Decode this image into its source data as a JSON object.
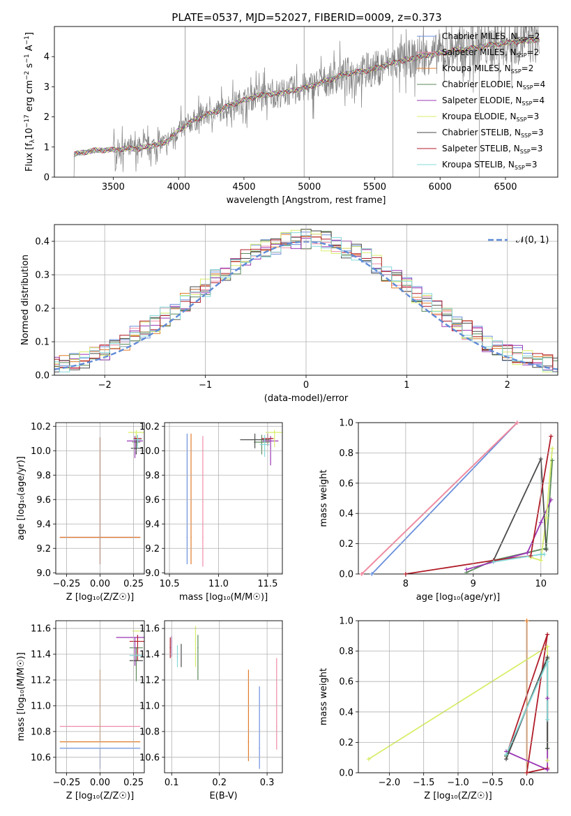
{
  "figure_title": "PLATE=0537, MJD=52027, FIBERID=0009, z=0.373",
  "colors": {
    "Chabrier MILES": "#6a8fdc",
    "Salpeter MILES": "#f08aa8",
    "Kroupa MILES": "#e07b2a",
    "Chabrier ELODIE": "#5a8a5a",
    "Salpeter ELODIE": "#9a35b5",
    "Kroupa ELODIE": "#d8ee6a",
    "Chabrier STELIB": "#4a4a4a",
    "Salpeter STELIB": "#b01c28",
    "Kroupa STELIB": "#84d8d8",
    "observed": "#808080",
    "normal": "#5f8bd6"
  },
  "chart_data": [
    {
      "id": "spectrum",
      "type": "line",
      "title": "PLATE=0537, MJD=52027, FIBERID=0009, z=0.373",
      "xlabel": "wavelength [Angstrom, rest frame]",
      "ylabel": "Flux [f_λ 10^-17 erg cm^-2 s^-1 A^-1]",
      "xlim": [
        3050,
        6900
      ],
      "ylim": [
        0,
        5
      ],
      "xticks": [
        "3500",
        "4000",
        "4500",
        "5000",
        "5500",
        "6000",
        "6500"
      ],
      "yticks": [
        "0",
        "1",
        "2",
        "3",
        "4"
      ],
      "legend_position": "top-right",
      "legend": [
        {
          "label": "Chabrier MILES, N",
          "sub": "SSP",
          "tail": "=2",
          "color": "#6a8fdc"
        },
        {
          "label": "Salpeter MILES, N",
          "sub": "SSP",
          "tail": "=2",
          "color": "#f08aa8"
        },
        {
          "label": "Kroupa MILES, N",
          "sub": "SSP",
          "tail": "=2",
          "color": "#e07b2a"
        },
        {
          "label": "Chabrier ELODIE, N",
          "sub": "SSP",
          "tail": "=4",
          "color": "#5a8a5a"
        },
        {
          "label": "Salpeter ELODIE, N",
          "sub": "SSP",
          "tail": "=4",
          "color": "#9a35b5"
        },
        {
          "label": "Kroupa ELODIE, N",
          "sub": "SSP",
          "tail": "=3",
          "color": "#d8ee6a"
        },
        {
          "label": "Chabrier STELIB, N",
          "sub": "SSP",
          "tail": "=3",
          "color": "#4a4a4a"
        },
        {
          "label": "Salpeter STELIB, N",
          "sub": "SSP",
          "tail": "=3",
          "color": "#b01c28"
        },
        {
          "label": "Kroupa STELIB, N",
          "sub": "SSP",
          "tail": "=3",
          "color": "#84d8d8"
        }
      ],
      "model_continuum": {
        "x": [
          3200,
          3300,
          3400,
          3500,
          3600,
          3700,
          3800,
          3900,
          4000,
          4100,
          4200,
          4300,
          4400,
          4500,
          4600,
          4700,
          4800,
          4900,
          5000,
          5100,
          5200,
          5300,
          5400,
          5500,
          5600,
          5700,
          5800,
          5900,
          6000,
          6100,
          6200,
          6300,
          6400,
          6500,
          6600,
          6700
        ],
        "y": [
          0.75,
          0.85,
          0.9,
          0.9,
          0.95,
          0.95,
          1.05,
          1.15,
          1.55,
          1.85,
          2.05,
          2.2,
          2.4,
          2.55,
          2.7,
          2.75,
          2.8,
          2.9,
          3.0,
          3.15,
          3.3,
          3.45,
          3.5,
          3.6,
          3.75,
          3.85,
          3.95,
          4.05,
          4.1,
          4.2,
          4.25,
          4.3,
          4.4,
          4.45,
          4.5,
          4.55
        ]
      },
      "observed_range": [
        3200,
        6760
      ]
    },
    {
      "id": "residuals",
      "type": "histogram",
      "xlabel": "(data-model)/error",
      "ylabel": "Normed distribution",
      "xlim": [
        -2.5,
        2.5
      ],
      "ylim": [
        0,
        0.45
      ],
      "xticks": [
        "−2",
        "−1",
        "0",
        "1",
        "2"
      ],
      "yticks": [
        "0.0",
        "0.1",
        "0.2",
        "0.3",
        "0.4"
      ],
      "legend_position": "top-right",
      "legend": [
        {
          "label": "𝒩(0, 1)",
          "color": "#5f8bd6"
        }
      ],
      "bin_width": 0.1,
      "reference_curve": "normal(0,1)"
    },
    {
      "id": "age-vs-Z",
      "type": "scatter",
      "xlabel": "Z [log₁₀(Z/Z☉)]",
      "ylabel": "age  [log₁₀(age/yr)]",
      "xlim": [
        -0.33,
        0.33
      ],
      "ylim": [
        8.99,
        10.23
      ],
      "xticks": [
        "−0.25",
        "0.00",
        "0.25"
      ],
      "yticks": [
        "9.0",
        "9.2",
        "9.4",
        "9.6",
        "9.8",
        "10.0",
        "10.2"
      ],
      "points": [
        {
          "x": 0.0,
          "xerr": 0.3,
          "y": 9.29,
          "yerr": [
            0.22,
            0.82
          ],
          "color": "#6a8fdc"
        },
        {
          "x": 0.0,
          "xerr": 0.3,
          "y": 9.29,
          "yerr": [
            0.22,
            0.82
          ],
          "color": "#f08aa8"
        },
        {
          "x": 0.0,
          "xerr": 0.3,
          "y": 9.29,
          "yerr": [
            0.22,
            0.82
          ],
          "color": "#e07b2a"
        },
        {
          "x": 0.27,
          "xerr": 0.03,
          "y": 10.07,
          "yerr": [
            0.1,
            0.06
          ],
          "color": "#5a8a5a"
        },
        {
          "x": 0.26,
          "xerr": 0.06,
          "y": 10.08,
          "yerr": [
            0.14,
            0.04
          ],
          "color": "#9a35b5"
        },
        {
          "x": 0.27,
          "xerr": 0.06,
          "y": 10.15,
          "yerr": [
            0.12,
            0.02
          ],
          "color": "#d8ee6a"
        },
        {
          "x": 0.27,
          "xerr": 0.04,
          "y": 10.02,
          "yerr": [
            0.05,
            0.08
          ],
          "color": "#4a4a4a"
        },
        {
          "x": 0.28,
          "xerr": 0.03,
          "y": 10.1,
          "yerr": [
            0.06,
            0.03
          ],
          "color": "#b01c28"
        },
        {
          "x": 0.28,
          "xerr": 0.03,
          "y": 10.09,
          "yerr": [
            0.07,
            0.04
          ],
          "color": "#84d8d8"
        }
      ]
    },
    {
      "id": "age-vs-mass",
      "type": "scatter",
      "xlabel": "mass [log₁₀(M/M☉)]",
      "ylabel": "",
      "xlim": [
        10.45,
        11.65
      ],
      "ylim": [
        8.99,
        10.23
      ],
      "xticks": [
        "10.5",
        "11.0",
        "11.5"
      ],
      "yticks": [
        "9.0",
        "9.2",
        "9.4",
        "9.6",
        "9.8",
        "10.0",
        "10.2"
      ],
      "points": [
        {
          "x": 10.68,
          "xerr": 0.0,
          "y": 9.29,
          "yerr": [
            0.22,
            0.85
          ],
          "color": "#6a8fdc"
        },
        {
          "x": 10.84,
          "xerr": 0.0,
          "y": 9.29,
          "yerr": [
            0.24,
            0.83
          ],
          "color": "#f08aa8"
        },
        {
          "x": 10.72,
          "xerr": 0.0,
          "y": 9.29,
          "yerr": [
            0.22,
            0.85
          ],
          "color": "#e07b2a"
        },
        {
          "x": 11.44,
          "xerr": 0.08,
          "y": 10.07,
          "yerr": [
            0.1,
            0.06
          ],
          "color": "#5a8a5a"
        },
        {
          "x": 11.53,
          "xerr": 0.08,
          "y": 10.08,
          "yerr": [
            0.2,
            0.04
          ],
          "color": "#9a35b5"
        },
        {
          "x": 11.57,
          "xerr": 0.09,
          "y": 10.15,
          "yerr": [
            0.12,
            0.02
          ],
          "color": "#d8ee6a"
        },
        {
          "x": 11.37,
          "xerr": 0.15,
          "y": 10.09,
          "yerr": [
            0.07,
            0.05
          ],
          "color": "#4a4a4a"
        },
        {
          "x": 11.5,
          "xerr": 0.06,
          "y": 10.1,
          "yerr": [
            0.06,
            0.04
          ],
          "color": "#b01c28"
        },
        {
          "x": 11.47,
          "xerr": 0.05,
          "y": 10.05,
          "yerr": [
            0.1,
            0.08
          ],
          "color": "#84d8d8"
        }
      ]
    },
    {
      "id": "weight-vs-age",
      "type": "line",
      "xlabel": "age  [log₁₀(age/yr)]",
      "ylabel": "mass weight",
      "xlim": [
        7.3,
        10.25
      ],
      "ylim": [
        0,
        1
      ],
      "xticks": [
        "8",
        "9",
        "10"
      ],
      "yticks": [
        "0.0",
        "0.2",
        "0.4",
        "0.6",
        "0.8",
        "1.0"
      ],
      "series": [
        {
          "color": "#6a8fdc",
          "x": [
            7.5,
            9.65
          ],
          "y": [
            0.0,
            1.0
          ]
        },
        {
          "color": "#e07b2a",
          "x": [
            7.35,
            9.65
          ],
          "y": [
            0.0,
            1.0
          ]
        },
        {
          "color": "#f08aa8",
          "x": [
            7.35,
            9.65
          ],
          "y": [
            0.0,
            1.0
          ]
        },
        {
          "color": "#5a8a5a",
          "x": [
            8.9,
            9.3,
            10.08,
            10.17
          ],
          "y": [
            0.01,
            0.09,
            0.17,
            0.75
          ]
        },
        {
          "color": "#9a35b5",
          "x": [
            8.9,
            9.3,
            9.8,
            10.0,
            10.15
          ],
          "y": [
            0.03,
            0.08,
            0.14,
            0.34,
            0.49
          ]
        },
        {
          "color": "#d8ee6a",
          "x": [
            9.85,
            10.0,
            10.08,
            10.17
          ],
          "y": [
            0.11,
            0.09,
            0.37,
            0.83
          ]
        },
        {
          "color": "#4a4a4a",
          "x": [
            9.3,
            10.0,
            10.08
          ],
          "y": [
            0.09,
            0.76,
            0.16
          ]
        },
        {
          "color": "#b01c28",
          "x": [
            8.0,
            9.3,
            9.85,
            10.15
          ],
          "y": [
            0.0,
            0.09,
            0.12,
            0.91
          ]
        },
        {
          "color": "#84d8d8",
          "x": [
            9.3,
            10.0,
            10.05
          ],
          "y": [
            0.08,
            0.13,
            0.13
          ]
        }
      ]
    },
    {
      "id": "mass-vs-Z",
      "type": "scatter",
      "xlabel": "Z [log₁₀(Z/Z☉)]",
      "ylabel": "mass [log₁₀(M/M☉)]",
      "xlim": [
        -0.33,
        0.33
      ],
      "ylim": [
        10.48,
        11.66
      ],
      "xticks": [
        "−0.25",
        "0.00",
        "0.25"
      ],
      "yticks": [
        "10.6",
        "10.8",
        "11.0",
        "11.2",
        "11.4",
        "11.6"
      ],
      "points": [
        {
          "x": 0.0,
          "xerr": 0.3,
          "y": 10.67,
          "yerr": [
            0.16,
            0.0
          ],
          "color": "#6a8fdc"
        },
        {
          "x": 0.0,
          "xerr": 0.3,
          "y": 10.84,
          "yerr": [
            0.0,
            0.0
          ],
          "color": "#f08aa8"
        },
        {
          "x": 0.0,
          "xerr": 0.3,
          "y": 10.72,
          "yerr": [
            0.0,
            0.56
          ],
          "color": "#e07b2a"
        },
        {
          "x": 0.27,
          "xerr": 0.05,
          "y": 11.45,
          "yerr": [
            0.26,
            0.0
          ],
          "color": "#5a8a5a"
        },
        {
          "x": 0.26,
          "xerr": 0.14,
          "y": 11.53,
          "yerr": [
            0.22,
            0.0
          ],
          "color": "#9a35b5"
        },
        {
          "x": 0.27,
          "xerr": 0.03,
          "y": 11.58,
          "yerr": [
            0.0,
            0.0
          ],
          "color": "#d8ee6a"
        },
        {
          "x": 0.27,
          "xerr": 0.05,
          "y": 11.35,
          "yerr": [
            0.0,
            0.0
          ],
          "color": "#4a4a4a"
        },
        {
          "x": 0.28,
          "xerr": 0.06,
          "y": 11.5,
          "yerr": [
            0.15,
            0.05
          ],
          "color": "#b01c28"
        },
        {
          "x": 0.27,
          "xerr": 0.05,
          "y": 11.39,
          "yerr": [
            0.0,
            0.0
          ],
          "color": "#84d8d8"
        }
      ]
    },
    {
      "id": "mass-vs-ebv",
      "type": "scatter",
      "xlabel": "E(B-V)",
      "ylabel": "",
      "xlim": [
        0.085,
        0.332
      ],
      "ylim": [
        10.48,
        11.66
      ],
      "xticks": [
        "0.1",
        "0.2",
        "0.3"
      ],
      "yticks": [
        "10.6",
        "10.8",
        "11.0",
        "11.2",
        "11.4",
        "11.6"
      ],
      "points": [
        {
          "x": 0.284,
          "y": 10.67,
          "yerr": [
            0.16,
            0.48
          ],
          "color": "#6a8fdc"
        },
        {
          "x": 0.32,
          "y": 10.84,
          "yerr": [
            0.18,
            0.53
          ],
          "color": "#f08aa8"
        },
        {
          "x": 0.261,
          "y": 10.72,
          "yerr": [
            0.15,
            0.56
          ],
          "color": "#e07b2a"
        },
        {
          "x": 0.155,
          "y": 11.45,
          "yerr": [
            0.25,
            0.1
          ],
          "color": "#5a8a5a"
        },
        {
          "x": 0.1,
          "y": 11.5,
          "yerr": [
            0.12,
            0.04
          ],
          "color": "#9a35b5"
        },
        {
          "x": 0.15,
          "y": 11.5,
          "yerr": [
            0.2,
            0.12
          ],
          "color": "#d8ee6a"
        },
        {
          "x": 0.12,
          "y": 11.4,
          "yerr": [
            0.1,
            0.08
          ],
          "color": "#4a4a4a"
        },
        {
          "x": 0.097,
          "y": 11.45,
          "yerr": [
            0.08,
            0.08
          ],
          "color": "#b01c28"
        },
        {
          "x": 0.112,
          "y": 11.38,
          "yerr": [
            0.08,
            0.09
          ],
          "color": "#84d8d8"
        }
      ]
    },
    {
      "id": "weight-vs-Z",
      "type": "line",
      "xlabel": "Z [log₁₀(Z/Z☉)]",
      "ylabel": "mass weight",
      "xlim": [
        -2.45,
        0.45
      ],
      "ylim": [
        0,
        1
      ],
      "xticks": [
        "−2.0",
        "−1.5",
        "−1.0",
        "−0.5",
        "0.0"
      ],
      "yticks": [
        "0.0",
        "0.2",
        "0.4",
        "0.6",
        "0.8",
        "1.0"
      ],
      "series": [
        {
          "color": "#e07b2a",
          "x": [
            0.0,
            0.0
          ],
          "y": [
            0.0,
            1.0
          ]
        },
        {
          "color": "#d8ee6a",
          "x": [
            -2.3,
            0.3,
            0.3
          ],
          "y": [
            0.09,
            0.83,
            0.08
          ]
        },
        {
          "color": "#b01c28",
          "x": [
            -0.3,
            0.3,
            0.0,
            0.3
          ],
          "y": [
            0.11,
            0.91,
            0.0,
            0.03
          ]
        },
        {
          "color": "#9a35b5",
          "x": [
            -0.3,
            0.3,
            0.3
          ],
          "y": [
            0.14,
            0.02,
            0.49
          ]
        },
        {
          "color": "#5a8a5a",
          "x": [
            -0.3,
            0.3,
            0.3
          ],
          "y": [
            0.11,
            0.75,
            0.16
          ]
        },
        {
          "color": "#4a4a4a",
          "x": [
            -0.3,
            0.3,
            0.3
          ],
          "y": [
            0.09,
            0.76,
            0.16
          ]
        },
        {
          "color": "#84d8d8",
          "x": [
            -0.3,
            0.3,
            0.3
          ],
          "y": [
            0.12,
            0.73,
            0.35
          ]
        }
      ]
    }
  ]
}
